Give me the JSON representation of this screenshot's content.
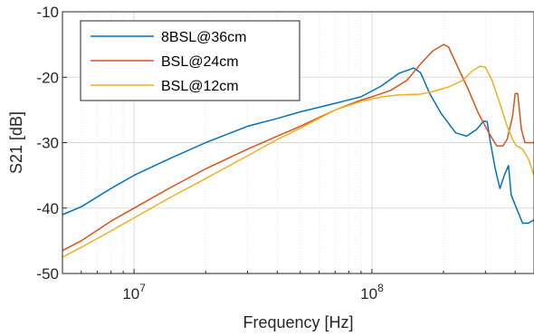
{
  "chart_data": {
    "type": "line",
    "xlabel": "Frequency [Hz]",
    "ylabel": "S21 [dB]",
    "xscale": "log",
    "xlim": [
      5000000,
      480000000
    ],
    "ylim": [
      -50,
      -10
    ],
    "grid": "on (major and minor)",
    "legend_position": "top-left",
    "x_ticks": [
      {
        "value": 10000000,
        "mantissa": "10",
        "exp": "7"
      },
      {
        "value": 100000000,
        "mantissa": "10",
        "exp": "8"
      }
    ],
    "y_ticks": [
      {
        "value": -10,
        "label": "-10"
      },
      {
        "value": -20,
        "label": "-20"
      },
      {
        "value": -30,
        "label": "-30"
      },
      {
        "value": -40,
        "label": "-40"
      },
      {
        "value": -50,
        "label": "-50"
      }
    ],
    "series": [
      {
        "name": "8BSL@36cm",
        "color": "#0072BD",
        "points": [
          [
            5000000,
            -41
          ],
          [
            6000000,
            -39.8
          ],
          [
            8000000,
            -37
          ],
          [
            10000000,
            -35
          ],
          [
            14000000,
            -32.5
          ],
          [
            20000000,
            -30
          ],
          [
            30000000,
            -27.5
          ],
          [
            40000000,
            -26.3
          ],
          [
            50000000,
            -25.3
          ],
          [
            70000000,
            -24
          ],
          [
            90000000,
            -23
          ],
          [
            110000000,
            -21.3
          ],
          [
            130000000,
            -19.4
          ],
          [
            150000000,
            -18.6
          ],
          [
            160000000,
            -19.3
          ],
          [
            175000000,
            -22.5
          ],
          [
            195000000,
            -25.5
          ],
          [
            225000000,
            -28.5
          ],
          [
            250000000,
            -29
          ],
          [
            275000000,
            -28
          ],
          [
            295000000,
            -26.7
          ],
          [
            305000000,
            -26.8
          ],
          [
            315000000,
            -30
          ],
          [
            330000000,
            -34
          ],
          [
            345000000,
            -37
          ],
          [
            360000000,
            -35
          ],
          [
            375000000,
            -33.5
          ],
          [
            385000000,
            -38
          ],
          [
            405000000,
            -40
          ],
          [
            430000000,
            -42.3
          ],
          [
            455000000,
            -42.3
          ],
          [
            480000000,
            -41.8
          ]
        ]
      },
      {
        "name": "BSL@24cm",
        "color": "#D95319",
        "points": [
          [
            5000000,
            -46.5
          ],
          [
            6000000,
            -45
          ],
          [
            8000000,
            -42
          ],
          [
            10000000,
            -40
          ],
          [
            14000000,
            -37
          ],
          [
            20000000,
            -34
          ],
          [
            30000000,
            -31
          ],
          [
            40000000,
            -29
          ],
          [
            50000000,
            -27.5
          ],
          [
            70000000,
            -25
          ],
          [
            90000000,
            -23.5
          ],
          [
            100000000,
            -23
          ],
          [
            120000000,
            -22
          ],
          [
            140000000,
            -20.5
          ],
          [
            160000000,
            -18
          ],
          [
            180000000,
            -16
          ],
          [
            200000000,
            -15
          ],
          [
            210000000,
            -15.4
          ],
          [
            230000000,
            -18.5
          ],
          [
            255000000,
            -22
          ],
          [
            280000000,
            -25.5
          ],
          [
            310000000,
            -28.5
          ],
          [
            335000000,
            -30.5
          ],
          [
            355000000,
            -30.5
          ],
          [
            370000000,
            -29.5
          ],
          [
            390000000,
            -26
          ],
          [
            400000000,
            -22.5
          ],
          [
            410000000,
            -22.5
          ],
          [
            425000000,
            -28
          ],
          [
            440000000,
            -30
          ],
          [
            480000000,
            -30
          ]
        ]
      },
      {
        "name": "BSL@12cm",
        "color": "#EDB120",
        "points": [
          [
            5000000,
            -47.5
          ],
          [
            6000000,
            -46
          ],
          [
            8000000,
            -43.5
          ],
          [
            10000000,
            -41.5
          ],
          [
            14000000,
            -38.5
          ],
          [
            20000000,
            -35.5
          ],
          [
            30000000,
            -32
          ],
          [
            40000000,
            -29.5
          ],
          [
            50000000,
            -27.8
          ],
          [
            70000000,
            -25
          ],
          [
            90000000,
            -23.7
          ],
          [
            110000000,
            -23
          ],
          [
            130000000,
            -22.7
          ],
          [
            160000000,
            -22.6
          ],
          [
            180000000,
            -22.2
          ],
          [
            210000000,
            -21.5
          ],
          [
            240000000,
            -20.5
          ],
          [
            265000000,
            -19
          ],
          [
            285000000,
            -18.3
          ],
          [
            300000000,
            -18.5
          ],
          [
            320000000,
            -20.5
          ],
          [
            345000000,
            -24
          ],
          [
            370000000,
            -27.5
          ],
          [
            390000000,
            -29.5
          ],
          [
            405000000,
            -30.5
          ],
          [
            430000000,
            -31
          ],
          [
            455000000,
            -32.5
          ],
          [
            480000000,
            -35
          ]
        ]
      }
    ]
  }
}
